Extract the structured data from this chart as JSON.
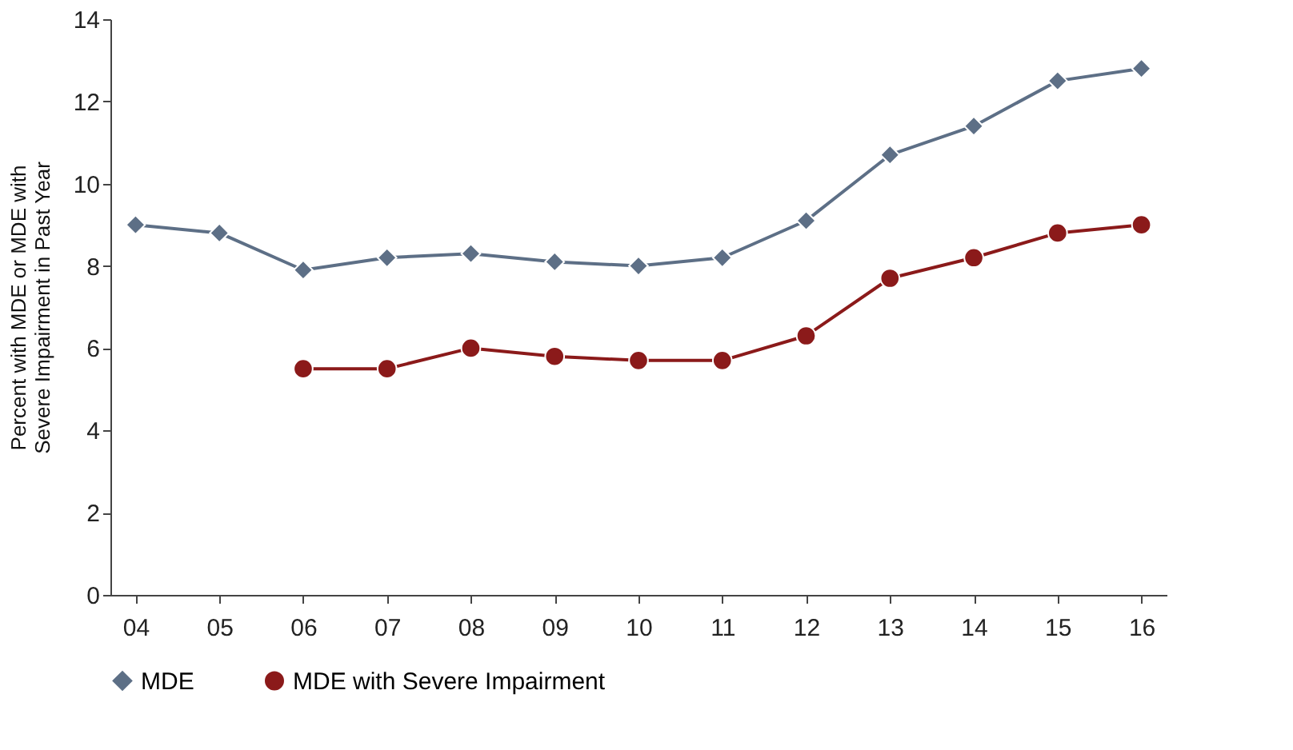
{
  "chart_data": {
    "type": "line",
    "ylabel": "Percent with MDE or MDE with\nSevere Impairment in Past Year",
    "categories": [
      "04",
      "05",
      "06",
      "07",
      "08",
      "09",
      "10",
      "11",
      "12",
      "13",
      "14",
      "15",
      "16"
    ],
    "series": [
      {
        "name": "MDE",
        "color": "#5d6f86",
        "marker": "diamond",
        "values": [
          9.0,
          8.8,
          7.9,
          8.2,
          8.3,
          8.1,
          8.0,
          8.2,
          9.1,
          10.7,
          11.4,
          12.5,
          12.8
        ]
      },
      {
        "name": "MDE with Severe Impairment",
        "color": "#8b1a1a",
        "marker": "circle",
        "values": [
          null,
          null,
          5.5,
          5.5,
          6.0,
          5.8,
          5.7,
          5.7,
          6.3,
          7.7,
          8.2,
          8.8,
          9.0
        ]
      }
    ],
    "ylim": [
      0,
      14
    ],
    "yticks": [
      0,
      2,
      4,
      6,
      8,
      10,
      12,
      14
    ],
    "grid": false,
    "legend": "bottom",
    "line_style": "solid"
  }
}
